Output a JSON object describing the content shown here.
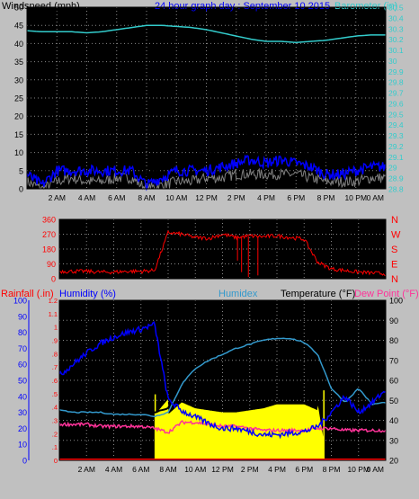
{
  "wind_chart": {
    "title": "24 hour graph day : September 10 2015",
    "left_label": "Windspeed (mph)",
    "right_label": "Barometer (in)",
    "left_ticks": [
      "0",
      "5",
      "10",
      "15",
      "20",
      "25",
      "30",
      "35",
      "40",
      "45",
      "50"
    ],
    "right_ticks": [
      "28.8",
      "28.9",
      "29",
      "29.1",
      "29.2",
      "29.3",
      "29.4",
      "29.5",
      "29.6",
      "29.7",
      "29.8",
      "29.9",
      "30",
      "30.1",
      "30.2",
      "30.3",
      "30.4",
      "30.5"
    ],
    "x_ticks": [
      "2 AM",
      "4 AM",
      "6 AM",
      "8 AM",
      "10 AM",
      "12 PM",
      "2 PM",
      "4 PM",
      "6 PM",
      "8 PM",
      "10 PM",
      "0 AM"
    ]
  },
  "dir_chart": {
    "left_ticks": [
      "0",
      "90",
      "180",
      "270",
      "360"
    ],
    "right_ticks": [
      "N",
      "E",
      "S",
      "W",
      "N"
    ]
  },
  "main_chart": {
    "label_rainfall": "Rainfall (.in)",
    "label_humidity": "Humidity (%)",
    "label_humidex": "Humidex",
    "label_temperature": "Temperature (°F)",
    "label_dewpoint": "Dew Point (°F)",
    "rain_ticks": [
      "0",
      ".1",
      ".2",
      ".3",
      ".4",
      ".5",
      ".6",
      ".7",
      ".8",
      ".9",
      "1",
      "1.1",
      "1.2"
    ],
    "humidity_ticks": [
      "0",
      "10",
      "20",
      "30",
      "40",
      "50",
      "60",
      "70",
      "80",
      "90",
      "100"
    ],
    "temp_ticks": [
      "20",
      "30",
      "40",
      "50",
      "60",
      "70",
      "80",
      "90",
      "100"
    ],
    "x_ticks": [
      "2 AM",
      "4 AM",
      "6 AM",
      "8 AM",
      "10 AM",
      "12 PM",
      "2 PM",
      "4 PM",
      "6 PM",
      "8 PM",
      "10 PM",
      "0 AM"
    ]
  },
  "colors": {
    "wind_gust": "#000000",
    "wind_avg": "#0000ff",
    "wind_low": "#808080",
    "barometer": "#33cccc",
    "direction": "#ff0000",
    "temperature": "#000000",
    "humidex": "#3399cc",
    "humidity": "#0000ff",
    "dewpoint": "#ff3399",
    "solar": "#ffff00",
    "rain": "#ff0000"
  },
  "chart_data": [
    {
      "type": "line",
      "x": [
        0,
        1,
        2,
        3,
        4,
        5,
        6,
        7,
        8,
        9,
        10,
        11,
        12,
        13,
        14,
        15,
        16,
        17,
        18,
        19,
        20,
        21,
        22,
        23,
        24
      ],
      "xlabel": "",
      "ylabel": "Windspeed (mph)",
      "ylim": [
        0,
        50
      ],
      "y2label": "Barometer (in)",
      "y2lim": [
        28.8,
        30.5
      ],
      "series": [
        {
          "values": [
            8,
            6,
            8,
            8,
            7,
            7,
            8,
            9,
            3,
            7,
            8,
            8,
            9,
            11,
            12,
            13,
            12,
            12,
            11,
            11,
            8,
            8,
            8,
            9,
            9
          ]
        },
        {
          "values": [
            4,
            1,
            5,
            5,
            5,
            5,
            5,
            5,
            1,
            3,
            5,
            5,
            5,
            6,
            7,
            8,
            7,
            8,
            7,
            6,
            4,
            4,
            5,
            6,
            6
          ]
        },
        {
          "values": [
            2,
            0,
            2,
            3,
            2,
            2,
            3,
            3,
            0,
            1,
            2,
            2,
            3,
            3,
            4,
            4,
            4,
            4,
            4,
            3,
            2,
            2,
            2,
            3,
            3
          ]
        },
        {
          "values": [
            30.28,
            30.27,
            30.27,
            30.27,
            30.26,
            30.27,
            30.29,
            30.31,
            30.33,
            30.33,
            30.32,
            30.31,
            30.29,
            30.26,
            30.23,
            30.2,
            30.18,
            30.18,
            30.17,
            30.18,
            30.19,
            30.21,
            30.23,
            30.24,
            30.24
          ]
        }
      ]
    },
    {
      "type": "line",
      "x": [
        0,
        1,
        2,
        3,
        4,
        5,
        6,
        7,
        8,
        9,
        10,
        11,
        12,
        13,
        14,
        15,
        16,
        17,
        18,
        19,
        20,
        21,
        22,
        23,
        24
      ],
      "ylim": [
        0,
        360
      ],
      "series": [
        {
          "values": [
            45,
            45,
            45,
            40,
            40,
            45,
            45,
            50,
            280,
            270,
            250,
            245,
            270,
            250,
            260,
            255,
            260,
            250,
            240,
            100,
            60,
            50,
            40,
            35,
            30
          ]
        }
      ]
    },
    {
      "type": "line",
      "x": [
        0,
        1,
        2,
        3,
        4,
        5,
        6,
        7,
        8,
        9,
        10,
        11,
        12,
        13,
        14,
        15,
        16,
        17,
        18,
        19,
        20,
        21,
        22,
        23,
        24
      ],
      "y_rain_lim": [
        0,
        1.2
      ],
      "y_humidity_lim": [
        0,
        100
      ],
      "y_temp_lim": [
        20,
        100
      ],
      "series": [
        {
          "values": [
            49,
            47,
            47,
            47,
            46,
            46,
            45,
            44,
            46,
            60,
            69,
            73,
            76,
            79,
            81,
            83,
            84,
            85,
            83,
            77,
            58,
            51,
            59,
            49,
            50
          ]
        },
        {
          "values": [
            45,
            44,
            44,
            44,
            43,
            43,
            43,
            42,
            44,
            58,
            66,
            70,
            73,
            76,
            78,
            80,
            81,
            81,
            79,
            73,
            56,
            49,
            56,
            48,
            49
          ]
        },
        {
          "values": [
            53,
            60,
            67,
            73,
            77,
            80,
            82,
            85,
            38,
            31,
            27,
            23,
            20,
            20,
            18,
            16,
            16,
            17,
            18,
            21,
            30,
            40,
            30,
            36,
            44
          ]
        },
        {
          "values": [
            38,
            38,
            38,
            37,
            37,
            37,
            37,
            36,
            34,
            39,
            39,
            38,
            37,
            37,
            36,
            35,
            35,
            35,
            35,
            36,
            36,
            35,
            35,
            35,
            35
          ]
        },
        {
          "values": [
            0,
            0,
            0,
            0,
            0,
            0,
            0,
            0,
            43,
            49,
            46,
            45,
            44,
            44,
            45,
            46,
            48,
            48,
            48,
            45,
            0,
            0,
            0,
            0,
            0
          ]
        },
        {
          "values": [
            0,
            0,
            0,
            0,
            0,
            0,
            0,
            0,
            0,
            0,
            0,
            0,
            0,
            0,
            0,
            0,
            0,
            0,
            0,
            0,
            0,
            0,
            0,
            0,
            0
          ]
        }
      ]
    }
  ]
}
